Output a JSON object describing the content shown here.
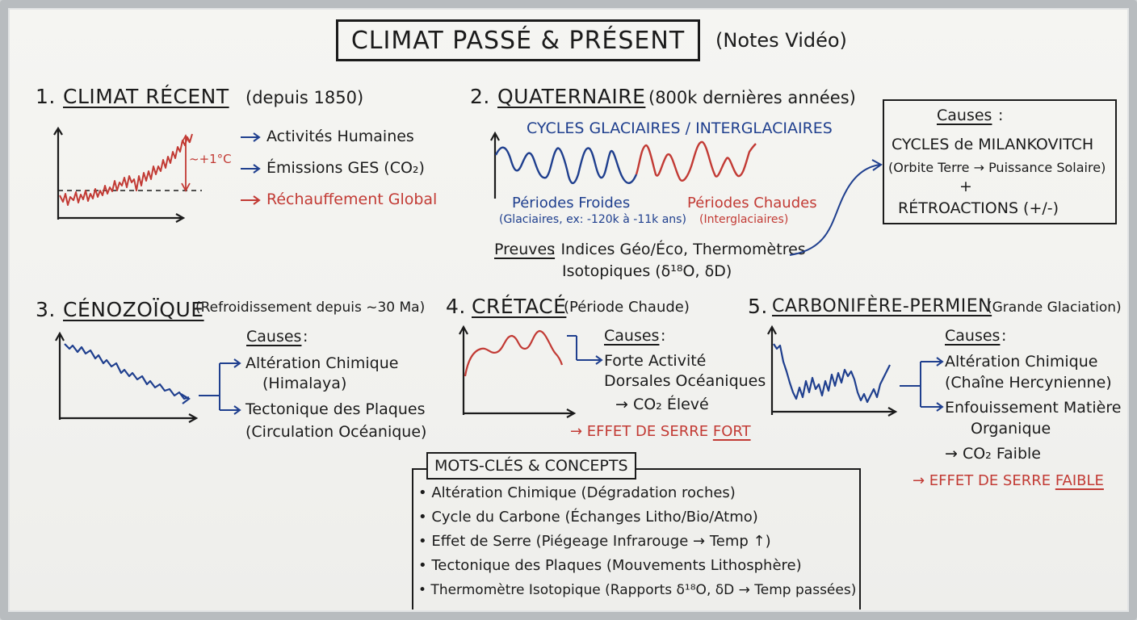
{
  "title": {
    "main": "CLIMAT PASSÉ & PRÉSENT",
    "sub": "(Notes Vidéo)"
  },
  "s1": {
    "number": "1.",
    "heading": "CLIMAT RÉCENT",
    "sub": "(depuis 1850)",
    "delta": "~+1°C",
    "bullets": [
      "Activités Humaines",
      "Émissions GES (CO₂)",
      "Réchauffement Global"
    ]
  },
  "s2": {
    "number": "2.",
    "heading": "QUATERNAIRE",
    "sub": "(800k dernières années)",
    "cycles": "CYCLES GLACIAIRES / INTERGLACIAIRES",
    "cold": "Périodes Froides",
    "cold_detail": "(Glaciaires, ex: -120k à -11k ans)",
    "warm": "Périodes Chaudes",
    "warm_detail": "(Interglaciaires)",
    "proof_label": "Preuves",
    "proof_line1": ": Indices Géo/Éco, Thermomètres",
    "proof_line2": "Isotopiques (δ¹⁸O, δD)",
    "causes_label": "Causes",
    "causes_colon": ":",
    "causes_line1": "CYCLES de MILANKOVITCH",
    "causes_line2": "(Orbite Terre → Puissance Solaire)",
    "causes_plus": "+",
    "causes_line3": "RÉTROACTIONS (+/-)"
  },
  "s3": {
    "number": "3.",
    "heading": "CÉNOZOÏQUE",
    "sub": "(Refroidissement depuis ~30 Ma)",
    "causes_label": "Causes",
    "causes_colon": ":",
    "items": [
      "Altération Chimique",
      "(Himalaya)",
      "Tectonique des Plaques",
      "(Circulation Océanique)"
    ]
  },
  "s4": {
    "number": "4.",
    "heading": "CRÉTACÉ",
    "sub": "(Période Chaude)",
    "causes_label": "Causes",
    "causes_colon": ":",
    "items": [
      "Forte Activité",
      "Dorsales Océaniques",
      "→ CO₂ Élevé"
    ],
    "effect_prefix": "→ EFFET DE SERRE ",
    "effect_strong": "FORT"
  },
  "s5": {
    "number": "5.",
    "heading": "CARBONIFÈRE-PERMIEN",
    "sub": "(Grande Glaciation)",
    "causes_label": "Causes",
    "causes_colon": ":",
    "items": [
      "Altération Chimique",
      "(Chaîne Hercynienne)",
      "Enfouissement Matière",
      "Organique",
      "→ CO₂ Faible"
    ],
    "effect_prefix": "→ EFFET DE SERRE ",
    "effect_strong": "FAIBLE"
  },
  "keywords": {
    "title": "MOTS-CLÉS & CONCEPTS",
    "items": [
      "• Altération Chimique (Dégradation roches)",
      "• Cycle du Carbone (Échanges Litho/Bio/Atmo)",
      "• Effet de Serre (Piégeage Infrarouge → Temp ↑)",
      "• Tectonique des Plaques (Mouvements Lithosphère)",
      "• Thermomètre Isotopique (Rapports δ¹⁸O, δD → Temp passées)"
    ]
  },
  "colors": {
    "ink": "#1b1b1b",
    "red": "#c23a34",
    "blue": "#1f3f8e",
    "board": "#f2f2ef",
    "frame": "#b8bcbf"
  }
}
